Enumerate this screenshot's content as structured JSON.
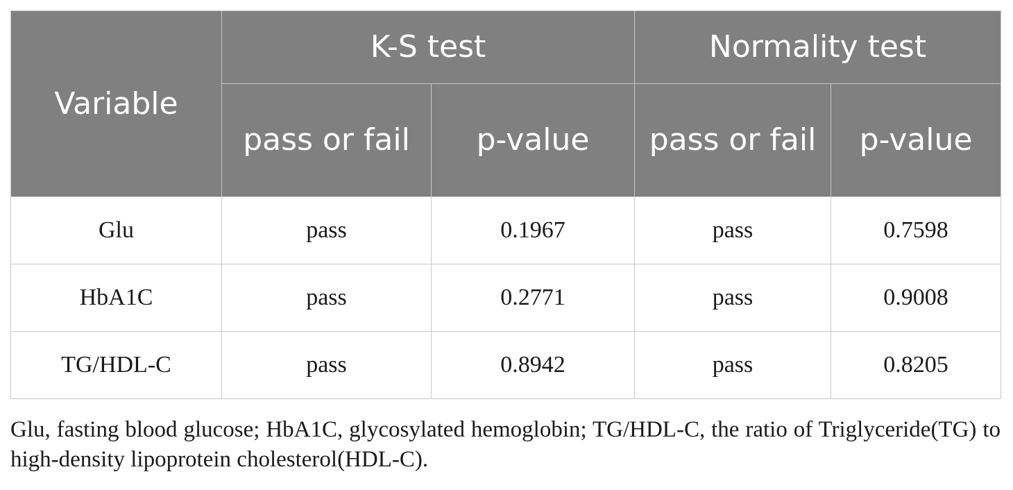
{
  "table": {
    "header": {
      "variable": "Variable",
      "groups": [
        "K-S test",
        "Normality test"
      ],
      "subcolumns": [
        "pass or fail",
        "p-value",
        "pass or fail",
        "p-value"
      ]
    },
    "rows": [
      {
        "variable": "Glu",
        "ks_result": "pass",
        "ks_p": "0.1967",
        "norm_result": "pass",
        "norm_p": "0.7598"
      },
      {
        "variable": "HbA1C",
        "ks_result": "pass",
        "ks_p": "0.2771",
        "norm_result": "pass",
        "norm_p": "0.9008"
      },
      {
        "variable": "TG/HDL-C",
        "ks_result": "pass",
        "ks_p": "0.8942",
        "norm_result": "pass",
        "norm_p": "0.8205"
      }
    ]
  },
  "footnote": "Glu, fasting blood glucose; HbA1C, glycosylated hemoglobin; TG/HDL-C, the ratio of Triglyceride(TG) to high-density lipoprotein cholesterol(HDL-C).",
  "colors": {
    "header_bg": "#808080",
    "header_text": "#ffffff",
    "grid": "#c8c8c8",
    "body_text": "#1a1a1a"
  }
}
